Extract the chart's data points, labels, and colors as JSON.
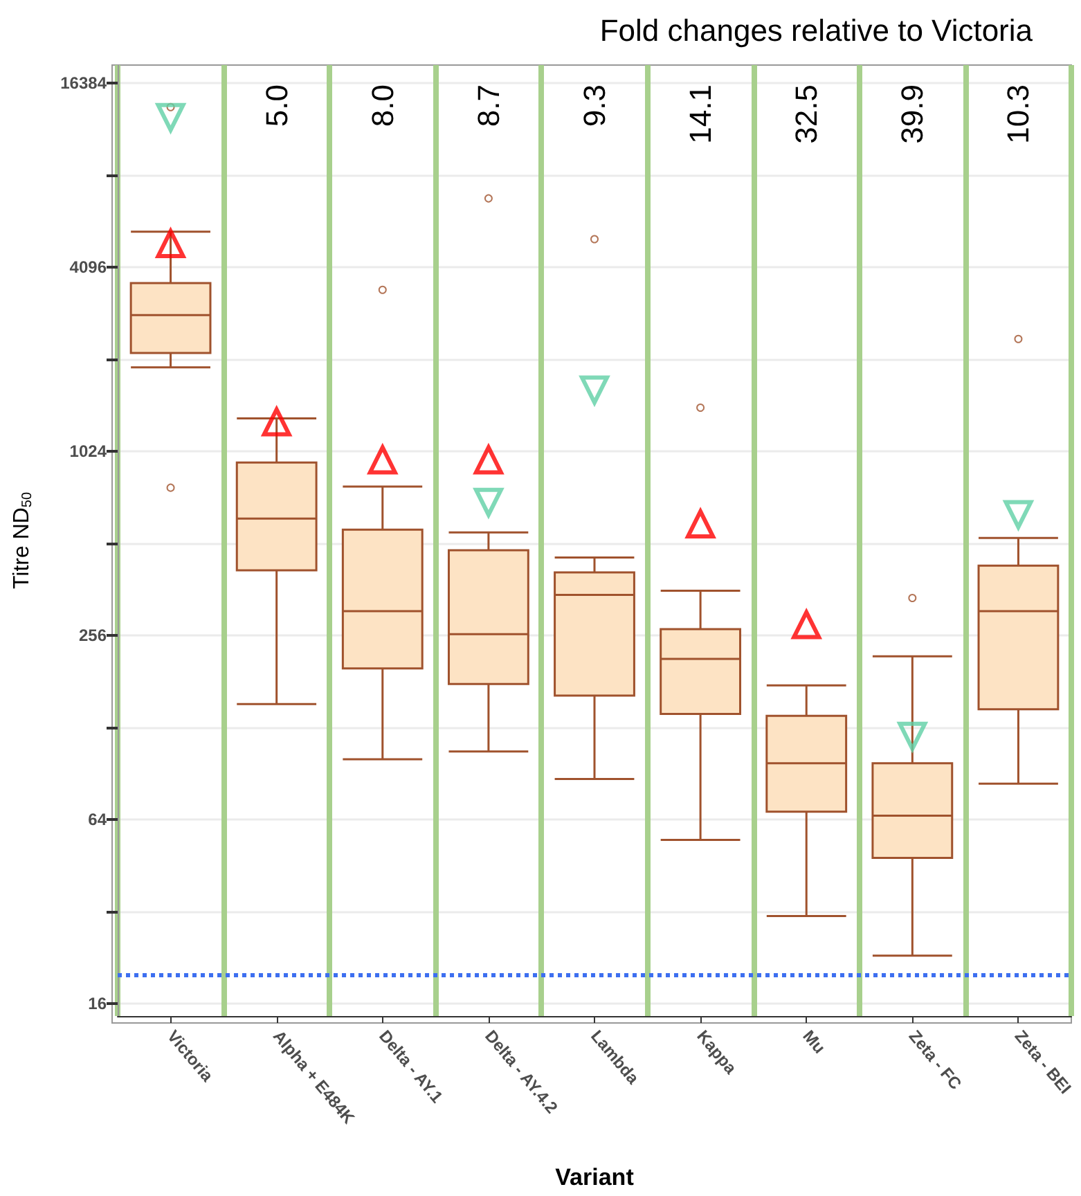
{
  "chart_data": {
    "type": "box",
    "title": "Fold changes relative to Victoria",
    "xlabel": "Variant",
    "ylabel": "Titre ND$_{50}$",
    "categories": [
      "Victoria",
      "Alpha + E484K",
      "Delta - AY.1",
      "Delta - AY.4.2",
      "Lambda",
      "Kappa",
      "Mu",
      "Zeta - FC",
      "Zeta - BEI"
    ],
    "series": [
      {
        "color": "#a0522d",
        "boxes": [
          {
            "low": 1930,
            "q1": 2150,
            "median": 2860,
            "q3": 3640,
            "high": 5360,
            "outliers": [
              780,
              13700
            ]
          },
          {
            "low": 153,
            "q1": 419,
            "median": 618,
            "q3": 943,
            "high": 1315
          },
          {
            "low": 101,
            "q1": 200,
            "median": 308,
            "q3": 569,
            "high": 787,
            "outliers": [
              3460
            ]
          },
          {
            "low": 107,
            "q1": 178,
            "median": 259,
            "q3": 487,
            "high": 557,
            "outliers": [
              6890
            ]
          },
          {
            "low": 87,
            "q1": 163,
            "median": 348,
            "q3": 412,
            "high": 461,
            "outliers": [
              5070
            ]
          },
          {
            "low": 55,
            "q1": 142,
            "median": 215,
            "q3": 269,
            "high": 359,
            "outliers": [
              1425
            ]
          },
          {
            "low": 31,
            "q1": 68,
            "median": 98,
            "q3": 140,
            "high": 176
          },
          {
            "low": 23,
            "q1": 48,
            "median": 66,
            "q3": 98,
            "high": 219,
            "outliers": [
              340
            ]
          },
          {
            "low": 84,
            "q1": 147,
            "median": 308,
            "q3": 434,
            "high": 534,
            "outliers": [
              2390
            ]
          }
        ]
      },
      {
        "type": "scatter",
        "color": "#ff0000",
        "marker": "triangle",
        "x": [
          "Victoria",
          "Alpha + E484K",
          "Delta - AY.1",
          "Delta - AY.4.2",
          "Kappa",
          "Mu"
        ],
        "values": [
          4900,
          1280,
          962,
          962,
          594,
          278
        ]
      },
      {
        "type": "scatter",
        "color": "#5fcfa5",
        "marker": "triangle-down",
        "x": [
          "Victoria",
          "Delta - AY.4.2",
          "Lambda",
          "Zeta - FC",
          "Zeta - BEI"
        ],
        "values": [
          12660,
          699,
          1627,
          120,
          637
        ]
      }
    ],
    "log": true,
    "ylim": [
      14.6,
      18800
    ],
    "yticks": [
      16,
      {
        "value": 32,
        "label": null
      },
      64,
      {
        "value": 128,
        "label": null
      },
      256,
      {
        "value": 512,
        "label": null
      },
      1024,
      {
        "value": 2048,
        "label": null
      },
      4096,
      {
        "value": 8192,
        "label": null
      },
      16384
    ],
    "grid": true,
    "ref_lines": [
      {
        "axis": "y",
        "value": 20,
        "color": "#3d6ff0",
        "line_style": "dotted"
      }
    ],
    "annotations": [
      "5.0",
      "8.0",
      "8.7",
      "9.3",
      "14.1",
      "32.5",
      "39.9",
      "10.3"
    ]
  }
}
